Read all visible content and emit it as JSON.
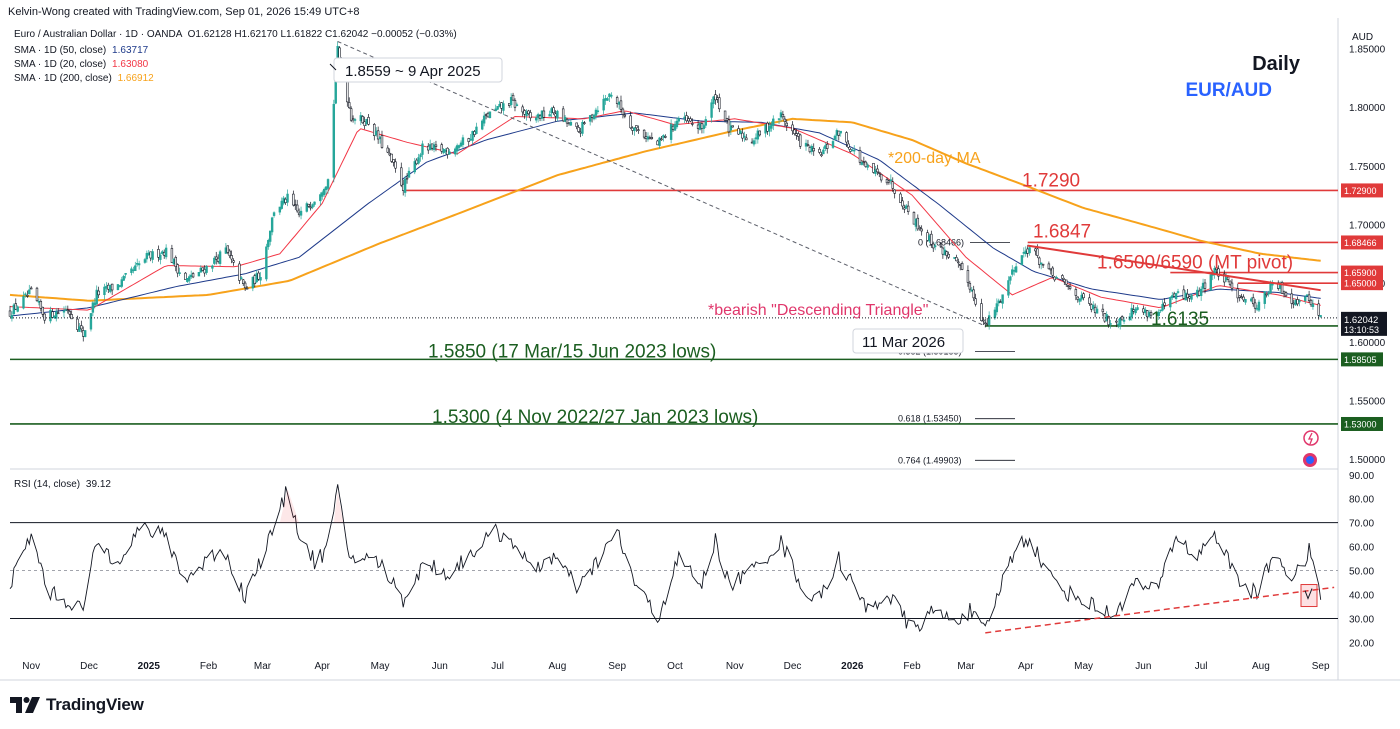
{
  "header": {
    "credit": "Kelvin-Wong created with TradingView.com, Sep 01, 2026 15:49 UTC+8",
    "symbol_line": "Euro / Australian Dollar · 1D · OANDA",
    "ohlc": "O1.62128  H1.62170  L1.61822  C1.62042  −0.00052 (−0.03%)",
    "sma50_label": "SMA · 1D (50, close)",
    "sma50_value": "1.63717",
    "sma20_label": "SMA · 1D (20, close)",
    "sma20_value": "1.63080",
    "sma200_label": "SMA · 1D (200, close)",
    "sma200_value": "1.66912",
    "rsi_label": "RSI (14, close)",
    "rsi_value": "39.12"
  },
  "brand": {
    "name": "TradingView"
  },
  "colors": {
    "up": "#26a69a",
    "down": "#131722",
    "sma20": "#f23645",
    "sma50": "#1e3a8a",
    "sma200": "#f7a21b",
    "red_level": "#e03a3a",
    "green_level": "#1b5e20",
    "annot_red": "#e0366b",
    "annot_blue": "#2962ff",
    "annot_orange": "#f7a21b"
  },
  "chart_data": [
    {
      "type": "candlestick",
      "title": "EUR/AUD",
      "timeframe_label": "Daily",
      "currency": "AUD",
      "ylim": [
        1.4925,
        1.8725
      ],
      "xlim": [
        "2024-10-21",
        "2026-09-10"
      ],
      "y_ticks": [
        "1.85000",
        "1.80000",
        "1.75000",
        "1.70000",
        "1.65000",
        "1.60000",
        "1.55000",
        "1.50000"
      ],
      "x_ticks": [
        {
          "d": "2024-11-01",
          "label": "Nov"
        },
        {
          "d": "2024-12-01",
          "label": "Dec"
        },
        {
          "d": "2025-01-01",
          "label": "2025",
          "bold": true
        },
        {
          "d": "2025-02-01",
          "label": "Feb"
        },
        {
          "d": "2025-03-01",
          "label": "Mar"
        },
        {
          "d": "2025-04-01",
          "label": "Apr"
        },
        {
          "d": "2025-05-01",
          "label": "May"
        },
        {
          "d": "2025-06-01",
          "label": "Jun"
        },
        {
          "d": "2025-07-01",
          "label": "Jul"
        },
        {
          "d": "2025-08-01",
          "label": "Aug"
        },
        {
          "d": "2025-09-01",
          "label": "Sep"
        },
        {
          "d": "2025-10-01",
          "label": "Oct"
        },
        {
          "d": "2025-11-01",
          "label": "Nov"
        },
        {
          "d": "2025-12-01",
          "label": "Dec"
        },
        {
          "d": "2026-01-01",
          "label": "2026",
          "bold": true
        },
        {
          "d": "2026-02-01",
          "label": "Feb"
        },
        {
          "d": "2026-03-01",
          "label": "Mar"
        },
        {
          "d": "2026-04-01",
          "label": "Apr"
        },
        {
          "d": "2026-05-01",
          "label": "May"
        },
        {
          "d": "2026-06-01",
          "label": "Jun"
        },
        {
          "d": "2026-07-01",
          "label": "Jul"
        },
        {
          "d": "2026-08-01",
          "label": "Aug"
        },
        {
          "d": "2026-09-01",
          "label": "Sep"
        }
      ],
      "price_anchors": [
        [
          "2024-10-21",
          1.625
        ],
        [
          "2024-11-01",
          1.642
        ],
        [
          "2024-11-08",
          1.622
        ],
        [
          "2024-11-20",
          1.628
        ],
        [
          "2024-11-28",
          1.606
        ],
        [
          "2024-12-05",
          1.641
        ],
        [
          "2024-12-16",
          1.648
        ],
        [
          "2024-12-31",
          1.672
        ],
        [
          "2025-01-10",
          1.678
        ],
        [
          "2025-01-20",
          1.652
        ],
        [
          "2025-01-30",
          1.662
        ],
        [
          "2025-02-10",
          1.678
        ],
        [
          "2025-02-20",
          1.645
        ],
        [
          "2025-02-28",
          1.658
        ],
        [
          "2025-03-07",
          1.712
        ],
        [
          "2025-03-14",
          1.722
        ],
        [
          "2025-03-20",
          1.708
        ],
        [
          "2025-03-28",
          1.722
        ],
        [
          "2025-04-04",
          1.738
        ],
        [
          "2025-04-09",
          1.848
        ],
        [
          "2025-04-16",
          1.792
        ],
        [
          "2025-04-25",
          1.787
        ],
        [
          "2025-05-05",
          1.76
        ],
        [
          "2025-05-13",
          1.732
        ],
        [
          "2025-05-23",
          1.765
        ],
        [
          "2025-06-05",
          1.763
        ],
        [
          "2025-06-16",
          1.773
        ],
        [
          "2025-06-25",
          1.792
        ],
        [
          "2025-07-08",
          1.805
        ],
        [
          "2025-07-18",
          1.79
        ],
        [
          "2025-07-30",
          1.796
        ],
        [
          "2025-08-12",
          1.779
        ],
        [
          "2025-08-22",
          1.8
        ],
        [
          "2025-08-29",
          1.812
        ],
        [
          "2025-09-08",
          1.785
        ],
        [
          "2025-09-22",
          1.768
        ],
        [
          "2025-10-03",
          1.79
        ],
        [
          "2025-10-15",
          1.782
        ],
        [
          "2025-10-22",
          1.81
        ],
        [
          "2025-10-29",
          1.781
        ],
        [
          "2025-11-10",
          1.772
        ],
        [
          "2025-11-25",
          1.793
        ],
        [
          "2025-12-05",
          1.77
        ],
        [
          "2025-12-15",
          1.758
        ],
        [
          "2025-12-25",
          1.779
        ],
        [
          "2026-01-08",
          1.748
        ],
        [
          "2026-01-20",
          1.738
        ],
        [
          "2026-02-01",
          1.706
        ],
        [
          "2026-02-12",
          1.683
        ],
        [
          "2026-02-22",
          1.672
        ],
        [
          "2026-03-03",
          1.648
        ],
        [
          "2026-03-11",
          1.613
        ],
        [
          "2026-03-20",
          1.64
        ],
        [
          "2026-03-27",
          1.668
        ],
        [
          "2026-04-03",
          1.681
        ],
        [
          "2026-04-12",
          1.66
        ],
        [
          "2026-04-22",
          1.648
        ],
        [
          "2026-05-05",
          1.629
        ],
        [
          "2026-05-16",
          1.616
        ],
        [
          "2026-05-28",
          1.628
        ],
        [
          "2026-06-08",
          1.623
        ],
        [
          "2026-06-18",
          1.64
        ],
        [
          "2026-06-28",
          1.638
        ],
        [
          "2026-07-08",
          1.661
        ],
        [
          "2026-07-20",
          1.641
        ],
        [
          "2026-07-30",
          1.631
        ],
        [
          "2026-08-08",
          1.65
        ],
        [
          "2026-08-18",
          1.635
        ],
        [
          "2026-08-26",
          1.637
        ],
        [
          "2026-09-01",
          1.62
        ]
      ],
      "sma20_anchors": [
        [
          "2024-10-21",
          1.63
        ],
        [
          "2024-12-01",
          1.627
        ],
        [
          "2025-01-10",
          1.665
        ],
        [
          "2025-02-15",
          1.664
        ],
        [
          "2025-03-10",
          1.675
        ],
        [
          "2025-04-01",
          1.718
        ],
        [
          "2025-04-20",
          1.782
        ],
        [
          "2025-05-15",
          1.77
        ],
        [
          "2025-06-10",
          1.76
        ],
        [
          "2025-07-10",
          1.792
        ],
        [
          "2025-08-15",
          1.79
        ],
        [
          "2025-09-05",
          1.797
        ],
        [
          "2025-10-01",
          1.785
        ],
        [
          "2025-11-01",
          1.79
        ],
        [
          "2025-12-01",
          1.782
        ],
        [
          "2026-01-01",
          1.76
        ],
        [
          "2026-02-01",
          1.725
        ],
        [
          "2026-03-01",
          1.672
        ],
        [
          "2026-03-25",
          1.64
        ],
        [
          "2026-04-15",
          1.655
        ],
        [
          "2026-05-10",
          1.638
        ],
        [
          "2026-06-10",
          1.629
        ],
        [
          "2026-07-10",
          1.648
        ],
        [
          "2026-08-10",
          1.64
        ],
        [
          "2026-09-01",
          1.631
        ]
      ],
      "sma50_anchors": [
        [
          "2024-10-21",
          1.622
        ],
        [
          "2024-12-01",
          1.629
        ],
        [
          "2025-01-15",
          1.647
        ],
        [
          "2025-02-20",
          1.658
        ],
        [
          "2025-03-20",
          1.672
        ],
        [
          "2025-04-25",
          1.718
        ],
        [
          "2025-05-25",
          1.753
        ],
        [
          "2025-06-25",
          1.772
        ],
        [
          "2025-08-01",
          1.788
        ],
        [
          "2025-09-10",
          1.795
        ],
        [
          "2025-10-15",
          1.788
        ],
        [
          "2025-11-15",
          1.787
        ],
        [
          "2025-12-15",
          1.778
        ],
        [
          "2026-01-15",
          1.755
        ],
        [
          "2026-02-15",
          1.717
        ],
        [
          "2026-03-15",
          1.68
        ],
        [
          "2026-04-05",
          1.66
        ],
        [
          "2026-05-05",
          1.645
        ],
        [
          "2026-06-10",
          1.636
        ],
        [
          "2026-07-10",
          1.645
        ],
        [
          "2026-08-10",
          1.642
        ],
        [
          "2026-09-01",
          1.637
        ]
      ],
      "sma200_anchors": [
        [
          "2024-10-21",
          1.64
        ],
        [
          "2024-12-01",
          1.635
        ],
        [
          "2025-02-01",
          1.64
        ],
        [
          "2025-03-15",
          1.652
        ],
        [
          "2025-05-01",
          1.684
        ],
        [
          "2025-06-15",
          1.712
        ],
        [
          "2025-08-01",
          1.742
        ],
        [
          "2025-09-15",
          1.762
        ],
        [
          "2025-11-01",
          1.78
        ],
        [
          "2025-12-01",
          1.79
        ],
        [
          "2026-01-01",
          1.787
        ],
        [
          "2026-02-01",
          1.772
        ],
        [
          "2026-03-01",
          1.752
        ],
        [
          "2026-04-01",
          1.733
        ],
        [
          "2026-05-01",
          1.714
        ],
        [
          "2026-06-01",
          1.7
        ],
        [
          "2026-07-01",
          1.686
        ],
        [
          "2026-08-01",
          1.675
        ],
        [
          "2026-09-01",
          1.669
        ]
      ],
      "levels": [
        {
          "value": 1.729,
          "color": "red",
          "text": "1.7290",
          "tag": "1.72900",
          "from": "2025-05-14"
        },
        {
          "value": 1.68466,
          "color": "red",
          "text": "1.6847",
          "tag": "1.68466",
          "from": "2026-04-02"
        },
        {
          "value": 1.659,
          "color": "red",
          "text": "1.6500/6590 (MT pivot)",
          "tag": "1.65900",
          "from": "2026-06-15"
        },
        {
          "value": 1.65,
          "color": "red",
          "tag": "1.65000",
          "from": "2026-07-20"
        },
        {
          "value": 1.6135,
          "color": "green",
          "text": "1.6135",
          "tag": "1.61350",
          "from": "2026-03-11"
        },
        {
          "value": 1.58505,
          "color": "green",
          "text": "1.5850 (17 Mar/15 Jun 2023 lows)",
          "tag": "1.58505",
          "from": "2024-10-21"
        },
        {
          "value": 1.53,
          "color": "green",
          "text": "1.5300 (4 Nov 2022/27 Jan 2023 lows)",
          "tag": "1.53000",
          "from": "2024-10-21"
        }
      ],
      "last_price": {
        "value": 1.62042,
        "tag": "1.62042",
        "countdown": "13:10:53"
      },
      "fib_levels": [
        {
          "value": 1.68466,
          "label": "0 (1.68466)"
        },
        {
          "value": 1.59185,
          "label": "0.382 (1.59185)"
        },
        {
          "value": 1.5345,
          "label": "0.618 (1.53450)"
        },
        {
          "value": 1.49903,
          "label": "0.764 (1.49903)"
        }
      ],
      "annotations": {
        "peak": "1.8559 ~ 9 Apr 2025",
        "low": "11 Mar 2026",
        "sma200_note": "*200-day MA",
        "pattern": "*bearish \"Descending Triangle\""
      },
      "descending_line": {
        "from": [
          "2025-04-09",
          1.8559
        ],
        "to": [
          "2026-03-11",
          1.6135
        ]
      },
      "triangle_line": {
        "from": [
          "2026-04-02",
          1.682
        ],
        "to": [
          "2026-09-01",
          1.644
        ]
      }
    },
    {
      "type": "line",
      "title": "RSI (14, close)",
      "ylim": [
        16,
        92
      ],
      "y_ticks": [
        "90.00",
        "80.00",
        "70.00",
        "60.00",
        "50.00",
        "40.00",
        "30.00",
        "20.00"
      ],
      "bands": [
        70,
        50,
        30
      ],
      "rsi_anchors": [
        [
          "2024-10-21",
          44
        ],
        [
          "2024-11-01",
          65
        ],
        [
          "2024-11-10",
          41
        ],
        [
          "2024-11-28",
          34
        ],
        [
          "2024-12-05",
          62
        ],
        [
          "2024-12-15",
          54
        ],
        [
          "2024-12-28",
          68
        ],
        [
          "2025-01-10",
          64
        ],
        [
          "2025-01-20",
          46
        ],
        [
          "2025-02-08",
          60
        ],
        [
          "2025-02-20",
          39
        ],
        [
          "2025-03-08",
          70
        ],
        [
          "2025-03-14",
          84
        ],
        [
          "2025-03-21",
          63
        ],
        [
          "2025-03-28",
          54
        ],
        [
          "2025-04-03",
          58
        ],
        [
          "2025-04-09",
          83
        ],
        [
          "2025-04-15",
          56
        ],
        [
          "2025-04-30",
          54
        ],
        [
          "2025-05-13",
          38
        ],
        [
          "2025-05-25",
          54
        ],
        [
          "2025-06-05",
          48
        ],
        [
          "2025-06-18",
          58
        ],
        [
          "2025-06-30",
          66
        ],
        [
          "2025-07-10",
          62
        ],
        [
          "2025-07-18",
          50
        ],
        [
          "2025-07-30",
          56
        ],
        [
          "2025-08-12",
          42
        ],
        [
          "2025-08-25",
          58
        ],
        [
          "2025-09-01",
          66
        ],
        [
          "2025-09-10",
          45
        ],
        [
          "2025-09-22",
          30
        ],
        [
          "2025-10-03",
          55
        ],
        [
          "2025-10-15",
          44
        ],
        [
          "2025-10-22",
          63
        ],
        [
          "2025-10-29",
          44
        ],
        [
          "2025-11-10",
          50
        ],
        [
          "2025-11-25",
          62
        ],
        [
          "2025-12-08",
          40
        ],
        [
          "2025-12-15",
          38
        ],
        [
          "2025-12-25",
          55
        ],
        [
          "2026-01-08",
          34
        ],
        [
          "2026-01-20",
          40
        ],
        [
          "2026-02-01",
          25
        ],
        [
          "2026-02-12",
          33
        ],
        [
          "2026-02-22",
          29
        ],
        [
          "2026-03-03",
          33
        ],
        [
          "2026-03-11",
          24
        ],
        [
          "2026-03-20",
          46
        ],
        [
          "2026-03-27",
          60
        ],
        [
          "2026-04-03",
          64
        ],
        [
          "2026-04-12",
          49
        ],
        [
          "2026-04-22",
          41
        ],
        [
          "2026-05-05",
          36
        ],
        [
          "2026-05-16",
          31
        ],
        [
          "2026-05-28",
          45
        ],
        [
          "2026-06-08",
          41
        ],
        [
          "2026-06-18",
          65
        ],
        [
          "2026-06-28",
          55
        ],
        [
          "2026-07-08",
          66
        ],
        [
          "2026-07-20",
          46
        ],
        [
          "2026-07-30",
          40
        ],
        [
          "2026-08-08",
          58
        ],
        [
          "2026-08-18",
          46
        ],
        [
          "2026-08-26",
          58
        ],
        [
          "2026-09-01",
          39
        ]
      ],
      "trendline": {
        "from": [
          "2026-03-11",
          24
        ],
        "to": [
          "2026-09-08",
          43
        ]
      }
    }
  ]
}
